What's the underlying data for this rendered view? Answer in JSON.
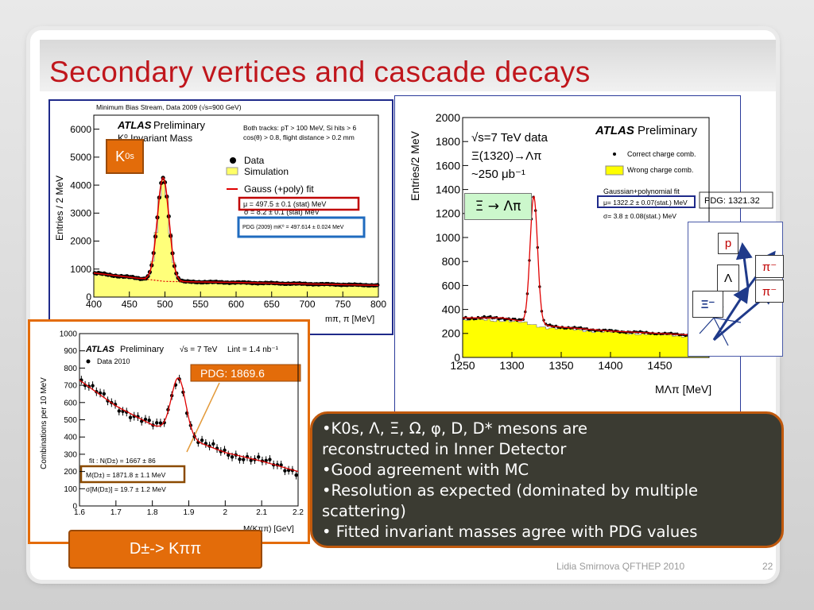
{
  "slide": {
    "title": "Secondary vertices and cascade decays",
    "footer_author": "Lidia Smirnova  QFTHEP 2010",
    "page_number": "22",
    "colors": {
      "title": "#c0161c",
      "tag": "#e36c0a",
      "frame_blue": "#1f2a8a",
      "bullet_bg": "#3b3b32"
    }
  },
  "bullets": [
    "•K0s, Λ, Ξ, Ω, φ, D, D*  mesons are",
    "reconstructed in Inner Detector",
    "•Good agreement with MC",
    "•Resolution as expected (dominated by multiple",
    "scattering)",
    "• Fitted invariant masses agree with PDG values"
  ],
  "tags": {
    "k0s": {
      "main": "K",
      "sup": "0",
      "sub": "s"
    },
    "xi": {
      "text": "Ξ → Λπ"
    },
    "dpm": {
      "text": "D±-> Kππ"
    }
  },
  "chart_data": [
    {
      "id": "k0s",
      "type": "scatter",
      "header": "Minimum Bias Stream, Data 2009 (√s=900 GeV)",
      "atlas": "ATLAS",
      "prelim": "Preliminary",
      "subtitle": "K⁰ Invariant Mass",
      "cuts": [
        "Both tracks: pT > 100 MeV, Si hits > 6",
        "cos(θ) > 0.8, flight distance > 0.2 mm"
      ],
      "legend": [
        "Data",
        "Simulation",
        "Gauss (+poly) fit"
      ],
      "fit_mu": "μ =   497.5 ± 0.1 (stat) MeV",
      "fit_sigma": "σ =     8.2 ± 0.1 (stat) MeV",
      "pdg": "PDG (2009) mK⁰ = 497.614 ± 0.024 MeV",
      "xlabel": "mπ, π [MeV]",
      "ylabel": "Entries / 2 MeV",
      "xlim": [
        400,
        800
      ],
      "ylim": [
        0,
        6500
      ],
      "xticks": [
        400,
        450,
        500,
        550,
        600,
        650,
        700,
        750,
        800
      ],
      "yticks": [
        0,
        1000,
        2000,
        3000,
        4000,
        5000,
        6000
      ],
      "peak": {
        "mean": 497.5,
        "sigma": 8.2,
        "amplitude": 3700
      },
      "background": [
        [
          400,
          860
        ],
        [
          500,
          560
        ],
        [
          600,
          520
        ],
        [
          700,
          470
        ],
        [
          800,
          420
        ]
      ]
    },
    {
      "id": "xi",
      "type": "scatter",
      "energy": "√s=7 TeV data",
      "process": "Ξ(1320)→Λπ",
      "lumi": "~250 μb⁻¹",
      "atlas": "ATLAS",
      "prelim": "Preliminary",
      "legend": [
        "Correct charge comb.",
        "Wrong charge comb."
      ],
      "fit_title": "Gaussian+polynomial fit",
      "fit_mu": "μ=  1322.2 ± 0.07(stat.) MeV",
      "fit_sigma": "σ=      3.8 ± 0.08(stat.) MeV",
      "pdg": "PDG: 1321.32",
      "xlabel": "MΛπ [MeV]",
      "ylabel": "Entries/2 MeV",
      "xlim": [
        1250,
        1500
      ],
      "ylim": [
        0,
        2000
      ],
      "xticks": [
        1250,
        1300,
        1350,
        1400,
        1450
      ],
      "yticks": [
        0,
        200,
        400,
        600,
        800,
        1000,
        1200,
        1400,
        1600,
        1800,
        2000
      ],
      "peak": {
        "mean": 1322.2,
        "sigma": 3.8,
        "amplitude": 1060
      },
      "background": [
        [
          1260,
          330
        ],
        [
          1290,
          330
        ],
        [
          1340,
          260
        ],
        [
          1400,
          220
        ],
        [
          1500,
          180
        ]
      ]
    },
    {
      "id": "dpm",
      "type": "scatter",
      "atlas": "ATLAS",
      "prelim": "Preliminary",
      "energy": "√s = 7 TeV",
      "lumi": "Lint = 1.4 nb⁻¹",
      "legend": [
        "Data 2010"
      ],
      "fit_n": "fit : N(D±) = 1667 ± 86",
      "fit_m": "M(D±) = 1871.8 ± 1.1 MeV",
      "fit_s": "σ[M(D±)] = 19.7 ± 1.2 MeV",
      "pdg": "PDG: 1869.6",
      "xlabel": "M(Kππ) [GeV]",
      "ylabel": "Combinations per 10 MeV",
      "xlim": [
        1.6,
        2.2
      ],
      "ylim": [
        0,
        1000
      ],
      "xticks": [
        1.6,
        1.7,
        1.8,
        1.9,
        2.0,
        2.1,
        2.2
      ],
      "yticks": [
        0,
        100,
        200,
        300,
        400,
        500,
        600,
        700,
        800,
        900,
        1000
      ],
      "peak": {
        "mean": 1.8718,
        "sigma": 0.0197,
        "amplitude": 330
      },
      "background": [
        [
          1.6,
          730
        ],
        [
          1.7,
          580
        ],
        [
          1.8,
          470
        ],
        [
          1.9,
          390
        ],
        [
          2.0,
          310
        ],
        [
          2.1,
          260
        ],
        [
          2.2,
          200
        ]
      ]
    }
  ],
  "decay_diagram": {
    "p": "p",
    "lambda": "Λ",
    "pi1": "π⁻",
    "pi2": "π⁻",
    "xi": "Ξ⁻"
  }
}
